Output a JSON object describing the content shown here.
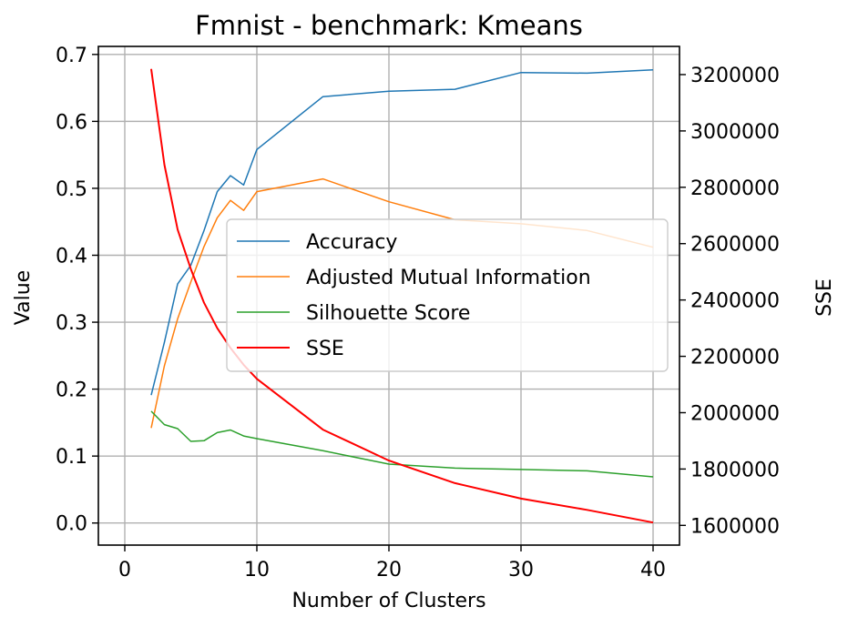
{
  "chart_data": {
    "type": "line",
    "title": "Fmnist - benchmark: Kmeans",
    "xlabel": "Number of Clusters",
    "ylabel": "Value",
    "y2label": "SSE",
    "grid": true,
    "legend_position": "center-right",
    "x_ticks": [
      "0",
      "10",
      "20",
      "30",
      "40"
    ],
    "y_ticks": [
      "0.0",
      "0.1",
      "0.2",
      "0.3",
      "0.4",
      "0.5",
      "0.6",
      "0.7"
    ],
    "y2_ticks": [
      "1600000",
      "1800000",
      "2000000",
      "2200000",
      "2400000",
      "2600000",
      "2800000",
      "3000000",
      "3200000"
    ],
    "xlim": [
      -2,
      42
    ],
    "ylim": [
      -0.033,
      0.712
    ],
    "y2lim": [
      1530000,
      3300000
    ],
    "x": [
      2,
      3,
      4,
      5,
      6,
      7,
      8,
      9,
      10,
      15,
      20,
      25,
      30,
      35,
      40
    ],
    "series": [
      {
        "name": "Accuracy",
        "axis": "left",
        "color": "#1f77b4",
        "width": 1.5,
        "values": [
          0.191,
          0.27,
          0.357,
          0.385,
          0.437,
          0.495,
          0.519,
          0.505,
          0.558,
          0.637,
          0.645,
          0.648,
          0.673,
          0.672,
          0.677
        ]
      },
      {
        "name": "Adjusted Mutual Information",
        "axis": "left",
        "color": "#ff7f0e",
        "width": 1.5,
        "values": [
          0.142,
          0.235,
          0.305,
          0.36,
          0.413,
          0.456,
          0.482,
          0.467,
          0.495,
          0.514,
          0.48,
          0.453,
          0.447,
          0.437,
          0.412
        ]
      },
      {
        "name": "Silhouette Score",
        "axis": "left",
        "color": "#2ca02c",
        "width": 1.5,
        "values": [
          0.167,
          0.147,
          0.141,
          0.122,
          0.123,
          0.135,
          0.139,
          0.13,
          0.126,
          0.108,
          0.088,
          0.082,
          0.08,
          0.078,
          0.069
        ]
      },
      {
        "name": "SSE",
        "axis": "right",
        "color": "#ff0000",
        "width": 2,
        "values": [
          3220000,
          2880000,
          2650000,
          2510000,
          2390000,
          2300000,
          2230000,
          2170000,
          2120000,
          1940000,
          1830000,
          1750000,
          1695000,
          1655000,
          1610000
        ]
      }
    ]
  }
}
